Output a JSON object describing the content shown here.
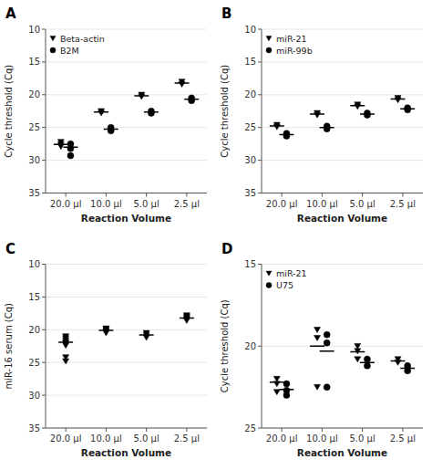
{
  "chart_data": [
    {
      "type": "strip",
      "title": "A",
      "y_label": "Cycle threshold (Cq)",
      "x_label": "Reaction Volume",
      "ylim": [
        35,
        10
      ],
      "yticks": [
        10,
        15,
        20,
        25,
        30,
        35
      ],
      "categories": [
        "20.0 μl",
        "10.0 μl",
        "5.0 μl",
        "2.5 μl"
      ],
      "legend": "upper left",
      "series": [
        {
          "name": "Beta-actin",
          "marker": "triangle-down",
          "color": "black",
          "values": [
            [
              27.2,
              27.6,
              27.9
            ],
            [
              22.5,
              22.8
            ],
            [
              20.0,
              20.3
            ],
            [
              18.0,
              18.4
            ]
          ],
          "means": [
            27.6,
            22.65,
            20.15,
            18.2
          ]
        },
        {
          "name": "B2M",
          "marker": "circle",
          "color": "black",
          "values": [
            [
              27.5,
              28.2,
              29.3
            ],
            [
              25.0,
              25.5
            ],
            [
              22.5,
              22.8
            ],
            [
              20.5,
              20.9
            ]
          ],
          "means": [
            28.0,
            25.25,
            22.65,
            20.7
          ]
        }
      ]
    },
    {
      "type": "strip",
      "title": "B",
      "y_label": "Cycle threshold (Cq)",
      "x_label": "Reaction Volume",
      "ylim": [
        35,
        10
      ],
      "yticks": [
        10,
        15,
        20,
        25,
        30,
        35
      ],
      "categories": [
        "20.0 μl",
        "10.0 μl",
        "5.0 μl",
        "2.5 μl"
      ],
      "legend": "upper left",
      "series": [
        {
          "name": "miR-21",
          "marker": "triangle-down",
          "color": "black",
          "values": [
            [
              24.6,
              24.9
            ],
            [
              22.8,
              23.1
            ],
            [
              21.5,
              21.8
            ],
            [
              20.5,
              20.8
            ]
          ],
          "means": [
            24.75,
            22.95,
            21.65,
            20.65
          ]
        },
        {
          "name": "miR-99b",
          "marker": "circle",
          "color": "black",
          "values": [
            [
              25.9,
              26.3
            ],
            [
              24.8,
              25.2
            ],
            [
              22.8,
              23.1
            ],
            [
              22.0,
              22.3
            ]
          ],
          "means": [
            26.1,
            25.0,
            22.95,
            22.15
          ]
        }
      ]
    },
    {
      "type": "strip",
      "title": "C",
      "y_label": "miR-16 serum (Cq)",
      "x_label": "Reaction Volume",
      "ylim": [
        35,
        10
      ],
      "yticks": [
        10,
        15,
        20,
        25,
        30,
        35
      ],
      "categories": [
        "20.0 μl",
        "10.0 μl",
        "5.0 μl",
        "2.5 μl"
      ],
      "series": [
        {
          "marker": "triangle-down",
          "color": "black",
          "values": [
            [
              21.0,
              21.3,
              21.6,
              21.9,
              22.1,
              22.4,
              24.2,
              24.8
            ],
            [
              19.8,
              20.0,
              20.2,
              20.5
            ],
            [
              20.5,
              20.8,
              21.2
            ],
            [
              17.8,
              18.0,
              18.2,
              18.4,
              18.6
            ]
          ],
          "means": [
            21.9,
            20.1,
            20.8,
            18.2
          ]
        }
      ]
    },
    {
      "type": "strip",
      "title": "D",
      "y_label": "Cycle threshold (Cq)",
      "x_label": "Reaction Volume",
      "ylim": [
        25,
        15
      ],
      "yticks": [
        15,
        20,
        25
      ],
      "categories": [
        "20.0 μl",
        "10.0 μl",
        "5.0 μl",
        "2.5 μl"
      ],
      "legend": "upper left",
      "series": [
        {
          "name": "miR-21",
          "marker": "triangle-down",
          "color": "black",
          "values": [
            [
              22.0,
              22.3,
              22.8
            ],
            [
              19.0,
              19.5,
              22.5
            ],
            [
              20.0,
              20.3,
              20.8
            ],
            [
              20.8,
              21.0
            ]
          ],
          "means": [
            22.2,
            20.0,
            20.35,
            20.9
          ]
        },
        {
          "name": "U75",
          "marker": "circle",
          "color": "black",
          "values": [
            [
              22.3,
              22.7,
              23.0
            ],
            [
              19.3,
              19.8,
              22.5
            ],
            [
              20.8,
              21.2
            ],
            [
              21.2,
              21.5
            ]
          ],
          "means": [
            22.65,
            20.3,
            21.0,
            21.35
          ]
        }
      ]
    }
  ]
}
